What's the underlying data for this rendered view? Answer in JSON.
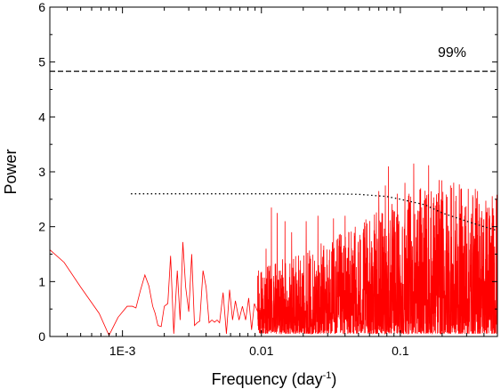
{
  "chart_data": {
    "type": "line",
    "xlabel": "Frequency (day",
    "xlabel_sup": "-1",
    "xlabel_close": ")",
    "ylabel": "Power",
    "x_scale": "log",
    "xlim": [
      0.0003,
      0.5
    ],
    "ylim": [
      0,
      6
    ],
    "x_ticks": [
      {
        "value": 0.001,
        "label": "1E-3"
      },
      {
        "value": 0.01,
        "label": "0.01"
      },
      {
        "value": 0.1,
        "label": "0.1"
      }
    ],
    "y_ticks": [
      0,
      1,
      2,
      3,
      4,
      5,
      6
    ],
    "grid": false,
    "colors": {
      "spectrum": "#ff0000",
      "threshold": "#000000",
      "noise": "#000000"
    },
    "annotations": [
      {
        "text": "99%"
      }
    ],
    "series": [
      {
        "style": "solid",
        "color": "#ff0000",
        "x": [
          0.0003,
          0.00038,
          0.0005,
          0.00068,
          0.0008,
          0.00093,
          0.00108,
          0.00118,
          0.00125,
          0.00135,
          0.00145,
          0.00155,
          0.00165,
          0.00172,
          0.0018,
          0.0019,
          0.002,
          0.00212,
          0.00222,
          0.00234,
          0.00248,
          0.0026,
          0.00272,
          0.00285,
          0.003,
          0.00315,
          0.0033,
          0.00345,
          0.0036,
          0.0038,
          0.004,
          0.0042,
          0.0044,
          0.0046,
          0.0048,
          0.005,
          0.0053,
          0.0056,
          0.0059,
          0.0062,
          0.0065,
          0.0069,
          0.0073,
          0.0077,
          0.0081,
          0.0085,
          0.0089,
          0.0094
        ],
        "y": [
          1.58,
          1.35,
          0.9,
          0.42,
          0.02,
          0.35,
          0.55,
          0.55,
          0.52,
          0.85,
          1.12,
          0.92,
          0.55,
          0.42,
          0.2,
          0.18,
          0.55,
          0.6,
          1.47,
          0.05,
          1.2,
          0.3,
          1.72,
          0.9,
          0.45,
          1.5,
          0.2,
          0.25,
          0.28,
          1.2,
          0.9,
          0.25,
          0.3,
          0.26,
          0.3,
          0.25,
          0.8,
          0.05,
          0.85,
          0.3,
          0.65,
          0.3,
          0.55,
          0.3,
          0.7,
          0.12,
          0.6,
          0.45
        ],
        "dense": {
          "x_start": 0.0094,
          "x_end": 0.5,
          "points": 1800,
          "envelope_x": [
            0.0094,
            0.02,
            0.05,
            0.1,
            0.2,
            0.5
          ],
          "envelope_y": [
            1.2,
            1.5,
            2.0,
            2.5,
            2.8,
            2.6
          ],
          "floor": 0.05
        },
        "peaks": [
          {
            "x": 0.0108,
            "y": 1.6
          },
          {
            "x": 0.0118,
            "y": 2.35
          },
          {
            "x": 0.013,
            "y": 2.25
          },
          {
            "x": 0.0148,
            "y": 2.1
          },
          {
            "x": 0.0165,
            "y": 1.9
          },
          {
            "x": 0.021,
            "y": 2.1
          },
          {
            "x": 0.0255,
            "y": 2.2
          },
          {
            "x": 0.033,
            "y": 2.15
          },
          {
            "x": 0.04,
            "y": 2.2
          },
          {
            "x": 0.051,
            "y": 1.85
          },
          {
            "x": 0.07,
            "y": 2.65
          },
          {
            "x": 0.078,
            "y": 2.75
          },
          {
            "x": 0.082,
            "y": 3.1
          },
          {
            "x": 0.095,
            "y": 2.6
          },
          {
            "x": 0.108,
            "y": 2.8
          },
          {
            "x": 0.125,
            "y": 3.15
          },
          {
            "x": 0.14,
            "y": 2.7
          },
          {
            "x": 0.16,
            "y": 3.12
          },
          {
            "x": 0.19,
            "y": 2.85
          },
          {
            "x": 0.23,
            "y": 2.75
          },
          {
            "x": 0.29,
            "y": 2.2
          },
          {
            "x": 0.36,
            "y": 2.65
          },
          {
            "x": 0.44,
            "y": 2.2
          },
          {
            "x": 0.49,
            "y": 2.5
          }
        ]
      },
      {
        "style": "dashed",
        "color": "#000000",
        "x": [
          0.0003,
          0.5
        ],
        "y": [
          4.83,
          4.83
        ]
      },
      {
        "style": "dotted",
        "color": "#000000",
        "x": [
          0.00115,
          0.003,
          0.01,
          0.03,
          0.05,
          0.08,
          0.1,
          0.15,
          0.2,
          0.3,
          0.4,
          0.5
        ],
        "y": [
          2.6,
          2.6,
          2.6,
          2.6,
          2.59,
          2.55,
          2.5,
          2.4,
          2.25,
          2.1,
          2.0,
          1.93
        ]
      }
    ]
  }
}
